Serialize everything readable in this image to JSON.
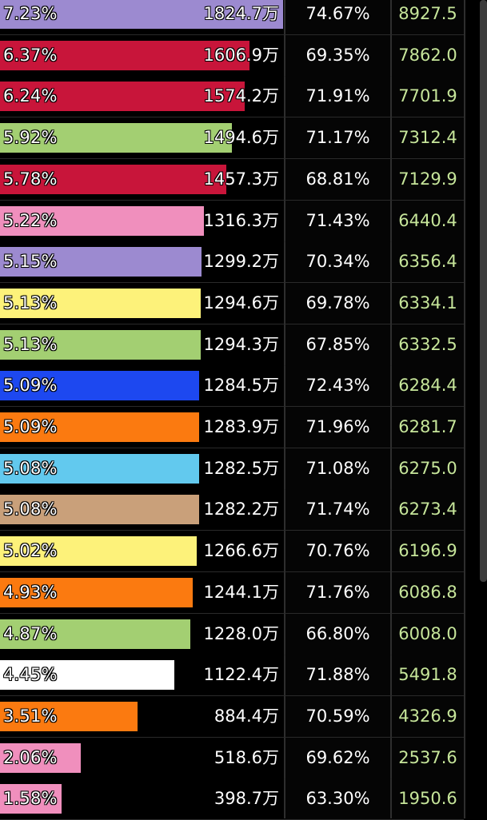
{
  "rows": [
    {
      "share": "7.23%",
      "amount": "1824.7万",
      "ratio": "74.67%",
      "value": "8927.5",
      "bar_fraction": 1.0,
      "color": "#9c8ad0"
    },
    {
      "share": "6.37%",
      "amount": "1606.9万",
      "ratio": "69.35%",
      "value": "7862.0",
      "bar_fraction": 0.881,
      "color": "#c8153a"
    },
    {
      "share": "6.24%",
      "amount": "1574.2万",
      "ratio": "71.91%",
      "value": "7701.9",
      "bar_fraction": 0.863,
      "color": "#c8153a"
    },
    {
      "share": "5.92%",
      "amount": "1494.6万",
      "ratio": "71.17%",
      "value": "7312.4",
      "bar_fraction": 0.819,
      "color": "#a3cf72"
    },
    {
      "share": "5.78%",
      "amount": "1457.3万",
      "ratio": "68.81%",
      "value": "7129.9",
      "bar_fraction": 0.799,
      "color": "#c8153a"
    },
    {
      "share": "5.22%",
      "amount": "1316.3万",
      "ratio": "71.43%",
      "value": "6440.4",
      "bar_fraction": 0.721,
      "color": "#f08fbd"
    },
    {
      "share": "5.15%",
      "amount": "1299.2万",
      "ratio": "70.34%",
      "value": "6356.4",
      "bar_fraction": 0.712,
      "color": "#9c8ad0"
    },
    {
      "share": "5.13%",
      "amount": "1294.6万",
      "ratio": "69.78%",
      "value": "6334.1",
      "bar_fraction": 0.709,
      "color": "#fdf27a"
    },
    {
      "share": "5.13%",
      "amount": "1294.3万",
      "ratio": "67.85%",
      "value": "6332.5",
      "bar_fraction": 0.709,
      "color": "#a3cf72"
    },
    {
      "share": "5.09%",
      "amount": "1284.5万",
      "ratio": "72.43%",
      "value": "6284.4",
      "bar_fraction": 0.704,
      "color": "#1d48f0"
    },
    {
      "share": "5.09%",
      "amount": "1283.9万",
      "ratio": "71.96%",
      "value": "6281.7",
      "bar_fraction": 0.704,
      "color": "#fb7a10"
    },
    {
      "share": "5.08%",
      "amount": "1282.5万",
      "ratio": "71.08%",
      "value": "6275.0",
      "bar_fraction": 0.703,
      "color": "#62c9ee"
    },
    {
      "share": "5.08%",
      "amount": "1282.2万",
      "ratio": "71.74%",
      "value": "6273.4",
      "bar_fraction": 0.703,
      "color": "#c9a07a"
    },
    {
      "share": "5.02%",
      "amount": "1266.6万",
      "ratio": "70.76%",
      "value": "6196.9",
      "bar_fraction": 0.694,
      "color": "#fdf27a"
    },
    {
      "share": "4.93%",
      "amount": "1244.1万",
      "ratio": "71.76%",
      "value": "6086.8",
      "bar_fraction": 0.682,
      "color": "#fb7a10"
    },
    {
      "share": "4.87%",
      "amount": "1228.0万",
      "ratio": "66.80%",
      "value": "6008.0",
      "bar_fraction": 0.673,
      "color": "#a3cf72"
    },
    {
      "share": "4.45%",
      "amount": "1122.4万",
      "ratio": "71.88%",
      "value": "5491.8",
      "bar_fraction": 0.615,
      "color": "#ffffff"
    },
    {
      "share": "3.51%",
      "amount": "884.4万",
      "ratio": "70.59%",
      "value": "4326.9",
      "bar_fraction": 0.485,
      "color": "#fb7a10"
    },
    {
      "share": "2.06%",
      "amount": "518.6万",
      "ratio": "69.62%",
      "value": "2537.6",
      "bar_fraction": 0.284,
      "color": "#f08fbd"
    },
    {
      "share": "1.58%",
      "amount": "398.7万",
      "ratio": "63.30%",
      "value": "1950.6",
      "bar_fraction": 0.218,
      "color": "#f08fbd"
    }
  ]
}
